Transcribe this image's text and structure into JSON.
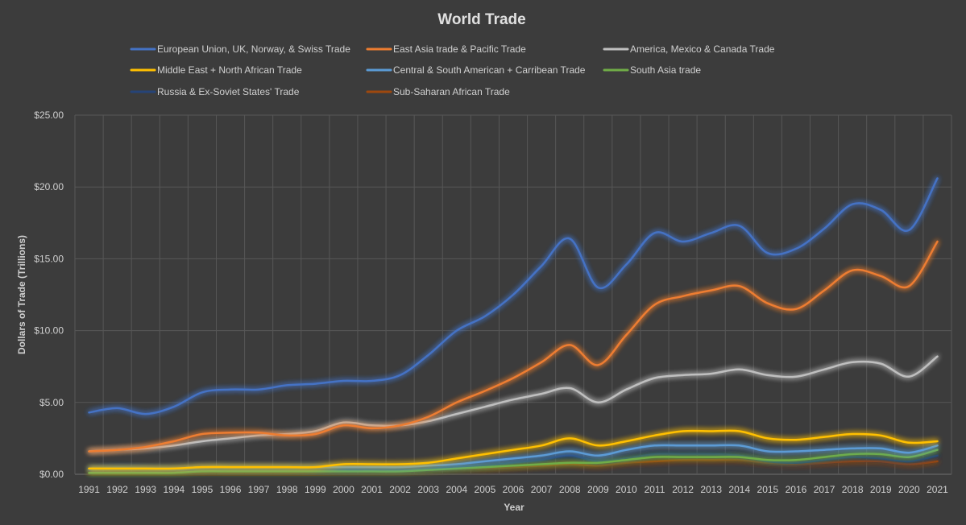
{
  "chart_data": {
    "type": "line",
    "title": "World Trade",
    "xlabel": "Year",
    "ylabel": "Dollars of Trade (Trillions)",
    "ylim": [
      0,
      25
    ],
    "y_ticks": [
      0,
      5,
      10,
      15,
      20,
      25
    ],
    "y_tick_labels": [
      "$0.00",
      "$5.00",
      "$10.00",
      "$15.00",
      "$20.00",
      "$25.00"
    ],
    "grid": true,
    "legend_position": "top",
    "categories": [
      "1991",
      "1992",
      "1993",
      "1994",
      "1995",
      "1996",
      "1997",
      "1998",
      "1999",
      "2000",
      "2001",
      "2002",
      "2003",
      "2004",
      "2005",
      "2006",
      "2007",
      "2008",
      "2009",
      "2010",
      "2011",
      "2012",
      "2013",
      "2014",
      "2015",
      "2016",
      "2017",
      "2018",
      "2019",
      "2020",
      "2021"
    ],
    "series": [
      {
        "name": "European Union, UK, Norway, & Swiss Trade",
        "color": "#4472c4",
        "values": [
          4.3,
          4.6,
          4.2,
          4.7,
          5.7,
          5.9,
          5.9,
          6.2,
          6.3,
          6.5,
          6.5,
          6.9,
          8.3,
          10.0,
          11.0,
          12.5,
          14.5,
          16.4,
          13.0,
          14.6,
          16.8,
          16.2,
          16.8,
          17.3,
          15.4,
          15.7,
          17.1,
          18.8,
          18.4,
          17.0,
          20.6
        ]
      },
      {
        "name": "East Asia trade & Pacific Trade",
        "color": "#ed7d31",
        "values": [
          1.6,
          1.7,
          1.9,
          2.3,
          2.8,
          2.9,
          2.9,
          2.7,
          2.8,
          3.4,
          3.2,
          3.4,
          4.0,
          5.0,
          5.8,
          6.7,
          7.8,
          9.0,
          7.6,
          9.7,
          11.8,
          12.4,
          12.8,
          13.1,
          11.9,
          11.5,
          12.8,
          14.2,
          13.8,
          13.1,
          16.2
        ]
      },
      {
        "name": "America, Mexico & Canada Trade",
        "color": "#bfbfbf",
        "values": [
          1.6,
          1.7,
          1.8,
          2.0,
          2.3,
          2.5,
          2.7,
          2.8,
          3.0,
          3.6,
          3.4,
          3.4,
          3.7,
          4.2,
          4.7,
          5.2,
          5.6,
          6.0,
          5.0,
          5.9,
          6.7,
          6.9,
          7.0,
          7.3,
          6.9,
          6.8,
          7.3,
          7.8,
          7.7,
          6.8,
          8.2
        ]
      },
      {
        "name": "Middle East + North African Trade",
        "color": "#ffc000",
        "values": [
          0.4,
          0.4,
          0.4,
          0.4,
          0.5,
          0.5,
          0.5,
          0.5,
          0.5,
          0.7,
          0.7,
          0.7,
          0.8,
          1.1,
          1.4,
          1.7,
          2.0,
          2.5,
          2.0,
          2.3,
          2.7,
          3.0,
          3.0,
          3.0,
          2.5,
          2.4,
          2.6,
          2.8,
          2.7,
          2.2,
          2.3
        ]
      },
      {
        "name": "Central & South American + Carribean Trade",
        "color": "#5b9bd5",
        "values": [
          0.4,
          0.4,
          0.4,
          0.4,
          0.5,
          0.5,
          0.5,
          0.5,
          0.5,
          0.5,
          0.5,
          0.5,
          0.6,
          0.7,
          0.9,
          1.1,
          1.3,
          1.6,
          1.3,
          1.7,
          2.0,
          2.0,
          2.0,
          2.0,
          1.6,
          1.6,
          1.7,
          1.8,
          1.8,
          1.5,
          2.0
        ]
      },
      {
        "name": "South Asia trade",
        "color": "#70ad47",
        "values": [
          0.1,
          0.1,
          0.1,
          0.1,
          0.2,
          0.2,
          0.2,
          0.2,
          0.2,
          0.2,
          0.2,
          0.2,
          0.3,
          0.4,
          0.5,
          0.6,
          0.7,
          0.8,
          0.8,
          1.0,
          1.2,
          1.2,
          1.2,
          1.2,
          1.0,
          1.0,
          1.2,
          1.4,
          1.4,
          1.2,
          1.7
        ]
      },
      {
        "name": "Russia & Ex-Soviet States'  Trade",
        "color": "#264478",
        "values": [
          0.3,
          0.5,
          0.4,
          0.3,
          0.3,
          0.3,
          0.3,
          0.3,
          0.2,
          0.3,
          0.3,
          0.3,
          0.4,
          0.5,
          0.6,
          0.8,
          1.0,
          1.3,
          0.9,
          1.1,
          1.4,
          1.4,
          1.4,
          1.3,
          0.9,
          0.8,
          1.0,
          1.2,
          1.1,
          0.9,
          1.3
        ]
      },
      {
        "name": "Sub-Saharan African Trade",
        "color": "#9e480e",
        "values": [
          0.1,
          0.1,
          0.1,
          0.1,
          0.1,
          0.1,
          0.1,
          0.1,
          0.1,
          0.2,
          0.2,
          0.2,
          0.3,
          0.4,
          0.4,
          0.5,
          0.6,
          0.7,
          0.6,
          0.8,
          0.9,
          1.0,
          1.0,
          1.0,
          0.8,
          0.7,
          0.8,
          0.9,
          0.9,
          0.7,
          0.9
        ]
      }
    ]
  }
}
